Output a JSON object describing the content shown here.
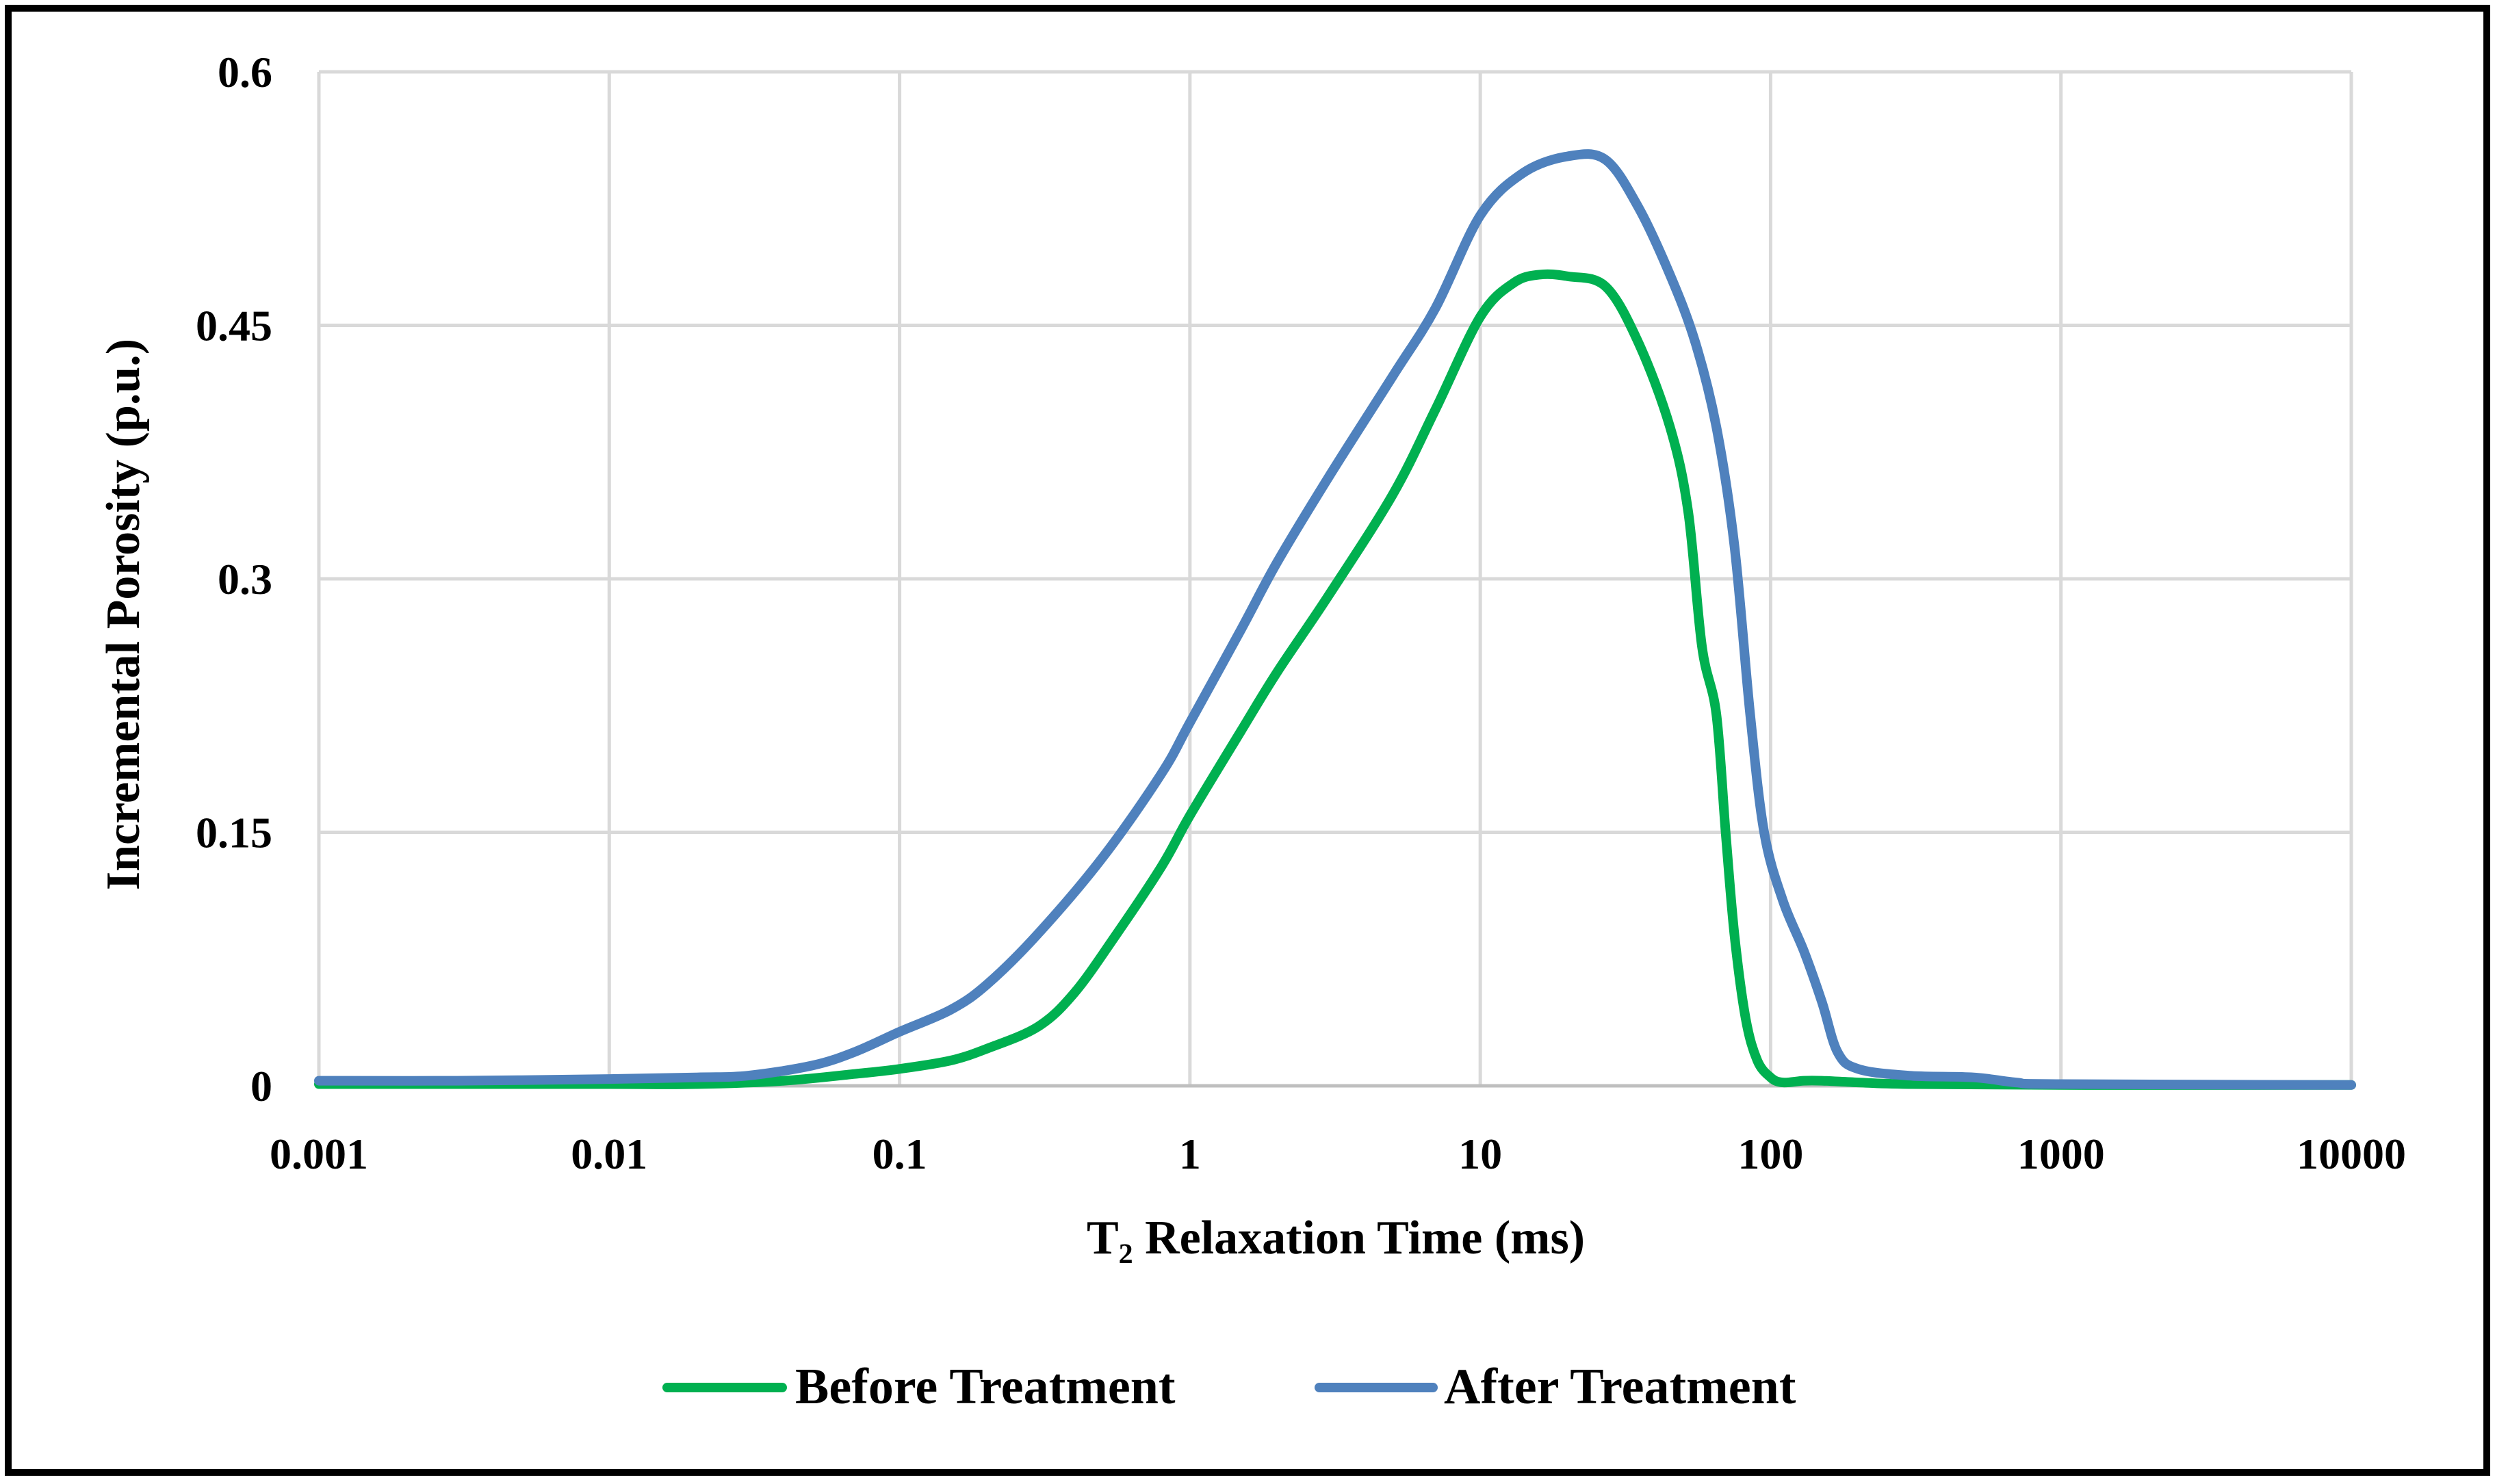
{
  "chart_data": {
    "type": "line",
    "title": "",
    "xlabel": "T₂ Relaxation Time (ms)",
    "ylabel": "Incremental Porosity (p.u.)",
    "xscale": "log",
    "xlim": [
      0.001,
      10000
    ],
    "ylim": [
      0,
      0.6
    ],
    "xticks": [
      {
        "value": 0.001,
        "label": "0.001"
      },
      {
        "value": 0.01,
        "label": "0.01"
      },
      {
        "value": 0.1,
        "label": "0.1"
      },
      {
        "value": 1,
        "label": "1"
      },
      {
        "value": 10,
        "label": "10"
      },
      {
        "value": 100,
        "label": "100"
      },
      {
        "value": 1000,
        "label": "1000"
      },
      {
        "value": 10000,
        "label": "10000"
      }
    ],
    "yticks": [
      {
        "value": 0,
        "label": "0"
      },
      {
        "value": 0.15,
        "label": "0.15"
      },
      {
        "value": 0.3,
        "label": "0.3"
      },
      {
        "value": 0.45,
        "label": "0.45"
      },
      {
        "value": 0.6,
        "label": "0.6"
      }
    ],
    "grid": true,
    "legend_position": "bottom-center",
    "series": [
      {
        "name": "Before Treatment",
        "color": "#00B050",
        "points": [
          [
            0.001,
            0.001
          ],
          [
            0.003,
            0.001
          ],
          [
            0.01,
            0.001
          ],
          [
            0.02,
            0.001
          ],
          [
            0.04,
            0.003
          ],
          [
            0.07,
            0.007
          ],
          [
            0.1,
            0.01
          ],
          [
            0.15,
            0.015
          ],
          [
            0.2,
            0.022
          ],
          [
            0.3,
            0.035
          ],
          [
            0.4,
            0.055
          ],
          [
            0.55,
            0.088
          ],
          [
            0.8,
            0.13
          ],
          [
            1.0,
            0.16
          ],
          [
            1.5,
            0.21
          ],
          [
            2,
            0.245
          ],
          [
            3,
            0.29
          ],
          [
            5,
            0.35
          ],
          [
            7,
            0.4
          ],
          [
            10,
            0.455
          ],
          [
            13,
            0.475
          ],
          [
            16,
            0.48
          ],
          [
            20,
            0.479
          ],
          [
            27,
            0.473
          ],
          [
            35,
            0.44
          ],
          [
            45,
            0.39
          ],
          [
            52,
            0.34
          ],
          [
            58,
            0.26
          ],
          [
            65,
            0.22
          ],
          [
            70,
            0.15
          ],
          [
            75,
            0.09
          ],
          [
            82,
            0.04
          ],
          [
            90,
            0.015
          ],
          [
            100,
            0.005
          ],
          [
            110,
            0.002
          ],
          [
            130,
            0.003
          ],
          [
            150,
            0.003
          ],
          [
            200,
            0.002
          ],
          [
            300,
            0.001
          ],
          [
            1000,
            0.0005
          ],
          [
            10000,
            0.0005
          ]
        ]
      },
      {
        "name": "After Treatment",
        "color": "#4F81BD",
        "points": [
          [
            0.001,
            0.003
          ],
          [
            0.003,
            0.003
          ],
          [
            0.01,
            0.004
          ],
          [
            0.02,
            0.005
          ],
          [
            0.03,
            0.006
          ],
          [
            0.05,
            0.012
          ],
          [
            0.07,
            0.02
          ],
          [
            0.1,
            0.032
          ],
          [
            0.15,
            0.045
          ],
          [
            0.2,
            0.06
          ],
          [
            0.3,
            0.09
          ],
          [
            0.5,
            0.135
          ],
          [
            0.8,
            0.185
          ],
          [
            1,
            0.215
          ],
          [
            1.5,
            0.27
          ],
          [
            2,
            0.31
          ],
          [
            3,
            0.36
          ],
          [
            5,
            0.42
          ],
          [
            7,
            0.46
          ],
          [
            10,
            0.515
          ],
          [
            14,
            0.54
          ],
          [
            20,
            0.55
          ],
          [
            27,
            0.548
          ],
          [
            35,
            0.52
          ],
          [
            45,
            0.48
          ],
          [
            55,
            0.44
          ],
          [
            65,
            0.39
          ],
          [
            75,
            0.32
          ],
          [
            85,
            0.22
          ],
          [
            95,
            0.15
          ],
          [
            110,
            0.11
          ],
          [
            130,
            0.08
          ],
          [
            150,
            0.05
          ],
          [
            170,
            0.02
          ],
          [
            200,
            0.01
          ],
          [
            300,
            0.006
          ],
          [
            500,
            0.005
          ],
          [
            700,
            0.002
          ],
          [
            1000,
            0.001
          ],
          [
            10000,
            0.0005
          ]
        ]
      }
    ]
  }
}
